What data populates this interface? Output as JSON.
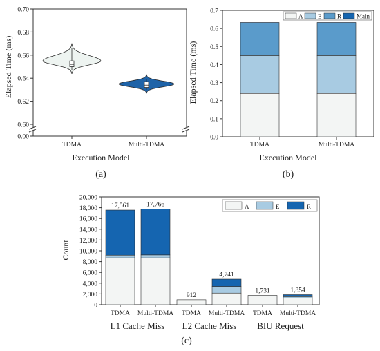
{
  "colors": {
    "A": "#f3f5f4",
    "E": "#a8cbe2",
    "R": "#5a9bcb",
    "Main": "#1565b0",
    "violin_tdma": "#eef4f1",
    "violin_multi": "#1e63a8",
    "axis": "#333333"
  },
  "panels": {
    "a": "(a)",
    "b": "(b)",
    "c": "(c)"
  },
  "chart_data": [
    {
      "id": "a",
      "type": "violin",
      "xlabel": "Execution Model",
      "ylabel": "Elapsed Time (ms)",
      "categories": [
        "TDMA",
        "Multi-TDMA"
      ],
      "ylim": [
        0.0,
        0.7
      ],
      "axis_break": [
        0.0,
        0.6
      ],
      "yticks": [
        "0.00",
        "0.60",
        "0.62",
        "0.64",
        "0.66",
        "0.68",
        "0.70"
      ],
      "violins": [
        {
          "category": "TDMA",
          "min": 0.644,
          "max": 0.67,
          "peak": 0.655,
          "q1": 0.65,
          "median": 0.652,
          "q3": 0.655
        },
        {
          "category": "Multi-TDMA",
          "min": 0.627,
          "max": 0.643,
          "peak": 0.635,
          "q1": 0.632,
          "median": 0.634,
          "q3": 0.637
        }
      ],
      "grid": false
    },
    {
      "id": "b",
      "type": "bar",
      "stacked": true,
      "xlabel": "Execution Model",
      "ylabel": "Elapsed Time (ms)",
      "categories": [
        "TDMA",
        "Multi-TDMA"
      ],
      "ylim": [
        0,
        0.7
      ],
      "yticks": [
        "0.0",
        "0.1",
        "0.2",
        "0.3",
        "0.4",
        "0.5",
        "0.6",
        "0.7"
      ],
      "series": [
        {
          "name": "A",
          "values": [
            0.24,
            0.24
          ]
        },
        {
          "name": "E",
          "values": [
            0.21,
            0.21
          ]
        },
        {
          "name": "R",
          "values": [
            0.18,
            0.18
          ]
        },
        {
          "name": "Main",
          "values": [
            0.003,
            0.003
          ]
        }
      ],
      "legend": "top-right",
      "grid": false
    },
    {
      "id": "c",
      "type": "bar",
      "stacked": true,
      "ylabel": "Count",
      "ylim": [
        0,
        20000
      ],
      "yticks": [
        "0",
        "2,000",
        "4,000",
        "6,000",
        "8,000",
        "10,000",
        "12,000",
        "14,000",
        "16,000",
        "18,000",
        "20,000"
      ],
      "groups": [
        "L1 Cache Miss",
        "L2 Cache Miss",
        "BIU Request"
      ],
      "categories": [
        "TDMA",
        "Multi-TDMA",
        "TDMA",
        "Multi-TDMA",
        "TDMA",
        "Multi-TDMA"
      ],
      "series": [
        {
          "name": "A",
          "values": [
            8700,
            8700,
            912,
            2150,
            1731,
            1250
          ]
        },
        {
          "name": "E",
          "values": [
            500,
            550,
            0,
            1250,
            0,
            250
          ]
        },
        {
          "name": "R",
          "values": [
            8361,
            8516,
            0,
            1341,
            0,
            354
          ]
        }
      ],
      "totals": [
        "17,561",
        "17,766",
        "912",
        "4,741",
        "1,731",
        "1,854"
      ],
      "legend": "top-right",
      "grid": false
    }
  ]
}
